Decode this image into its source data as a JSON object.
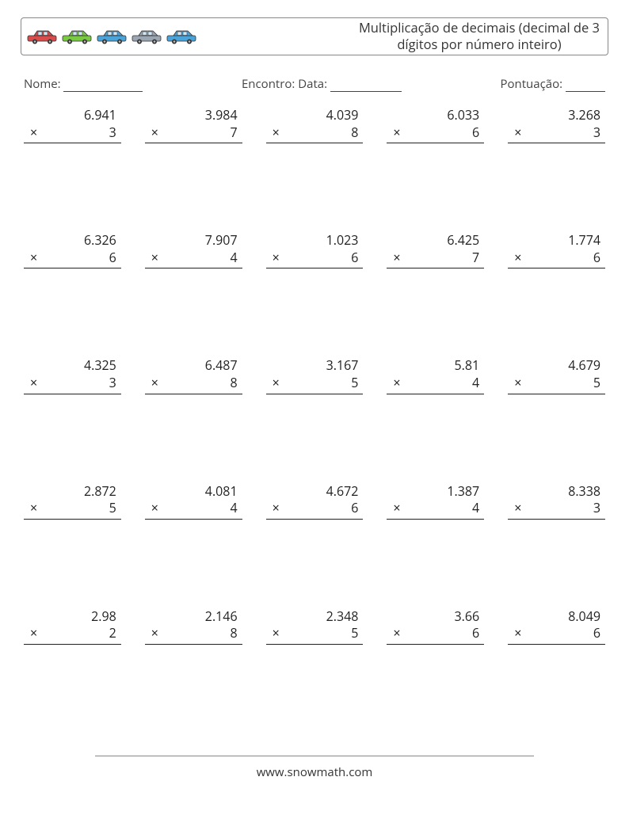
{
  "header": {
    "title_line1": "Multiplicação de decimais (decimal de 3",
    "title_line2": "dígitos por número inteiro)",
    "car_colors": [
      "#d94c4c",
      "#7ac943",
      "#4aa3d9",
      "#9aa6b2",
      "#4aa3d9"
    ]
  },
  "info": {
    "name_label": "Nome:",
    "date_label": "Encontro: Data:",
    "score_label": "Pontuação:"
  },
  "operator": "×",
  "problems": [
    {
      "a": "6.941",
      "b": "3"
    },
    {
      "a": "3.984",
      "b": "7"
    },
    {
      "a": "4.039",
      "b": "8"
    },
    {
      "a": "6.033",
      "b": "6"
    },
    {
      "a": "3.268",
      "b": "3"
    },
    {
      "a": "6.326",
      "b": "6"
    },
    {
      "a": "7.907",
      "b": "4"
    },
    {
      "a": "1.023",
      "b": "6"
    },
    {
      "a": "6.425",
      "b": "7"
    },
    {
      "a": "1.774",
      "b": "6"
    },
    {
      "a": "4.325",
      "b": "3"
    },
    {
      "a": "6.487",
      "b": "8"
    },
    {
      "a": "3.167",
      "b": "5"
    },
    {
      "a": "5.81",
      "b": "4"
    },
    {
      "a": "4.679",
      "b": "5"
    },
    {
      "a": "2.872",
      "b": "5"
    },
    {
      "a": "4.081",
      "b": "4"
    },
    {
      "a": "4.672",
      "b": "6"
    },
    {
      "a": "1.387",
      "b": "4"
    },
    {
      "a": "8.338",
      "b": "3"
    },
    {
      "a": "2.98",
      "b": "2"
    },
    {
      "a": "2.146",
      "b": "8"
    },
    {
      "a": "2.348",
      "b": "5"
    },
    {
      "a": "3.66",
      "b": "6"
    },
    {
      "a": "8.049",
      "b": "6"
    }
  ],
  "footer": {
    "url": "www.snowmath.com"
  }
}
